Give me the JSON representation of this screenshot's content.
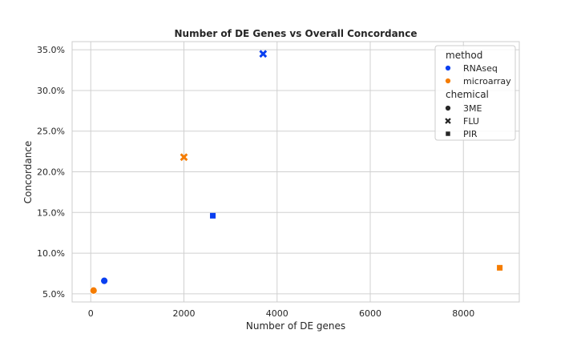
{
  "chart_data": {
    "type": "scatter",
    "title": "Number of DE Genes vs Overall Concordance",
    "xlabel": "Number of DE genes",
    "ylabel": "Concordance",
    "xlim": [
      -400,
      9200
    ],
    "ylim": [
      4.0,
      36.0
    ],
    "x_ticks": [
      0,
      2000,
      4000,
      6000,
      8000
    ],
    "x_tick_labels": [
      "0",
      "2000",
      "4000",
      "6000",
      "8000"
    ],
    "y_ticks": [
      5,
      10,
      15,
      20,
      25,
      30,
      35
    ],
    "y_tick_labels": [
      "5.0%",
      "10.0%",
      "15.0%",
      "20.0%",
      "25.0%",
      "30.0%",
      "35.0%"
    ],
    "grid": true,
    "legend_position": "top-right",
    "hue": {
      "title": "method",
      "entries": [
        {
          "name": "RNAseq",
          "color": "#0a3ff0"
        },
        {
          "name": "microarray",
          "color": "#f57c00"
        }
      ]
    },
    "style": {
      "title": "chemical",
      "entries": [
        {
          "name": "3ME",
          "marker": "circle"
        },
        {
          "name": "FLU",
          "marker": "x"
        },
        {
          "name": "PIR",
          "marker": "square"
        }
      ]
    },
    "points": [
      {
        "x": 290,
        "y": 6.6,
        "method": "RNAseq",
        "chemical": "3ME"
      },
      {
        "x": 3700,
        "y": 34.5,
        "method": "RNAseq",
        "chemical": "FLU"
      },
      {
        "x": 2620,
        "y": 14.6,
        "method": "RNAseq",
        "chemical": "PIR"
      },
      {
        "x": 60,
        "y": 5.4,
        "method": "microarray",
        "chemical": "3ME"
      },
      {
        "x": 2000,
        "y": 21.8,
        "method": "microarray",
        "chemical": "FLU"
      },
      {
        "x": 8780,
        "y": 8.2,
        "method": "microarray",
        "chemical": "PIR"
      }
    ]
  }
}
